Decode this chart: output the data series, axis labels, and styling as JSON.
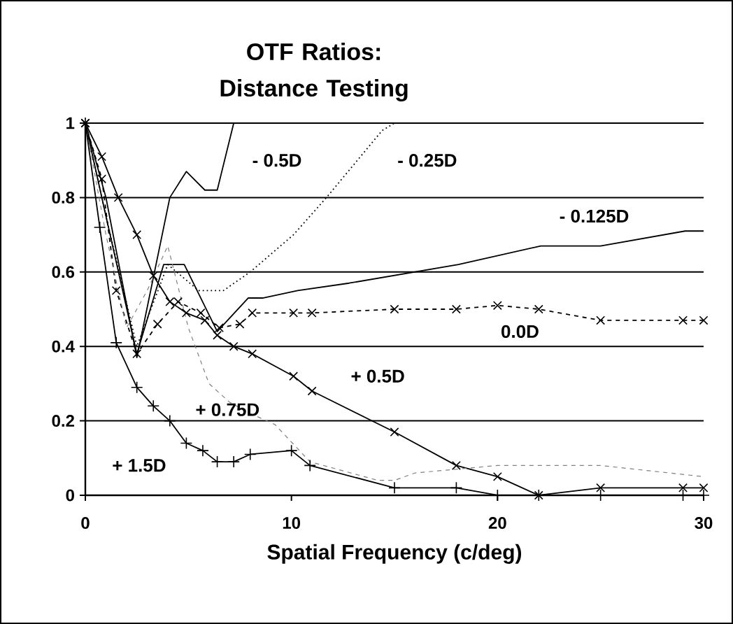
{
  "chart_data": {
    "type": "line",
    "title": "OTF Ratios: Distance Testing",
    "xlabel": "Spatial Frequency (c/deg)",
    "xlim": [
      0,
      30
    ],
    "xticks": [
      0,
      10,
      20,
      30
    ],
    "ylim": [
      0,
      1
    ],
    "yticks": [
      0,
      {
        "value": 0.2,
        "label": "0.2"
      },
      {
        "value": 0.4,
        "label": "0.4"
      },
      {
        "value": 0.6,
        "label": "0.6"
      },
      {
        "value": 0.8,
        "label": "0.8"
      },
      1
    ],
    "grid": "y",
    "series": [
      {
        "name": "- 0.5D",
        "color": "#000000",
        "marker": "none",
        "line_style": "solid",
        "x": [
          0,
          1,
          2.5,
          4.1,
          4.9,
          5.8,
          6.4,
          7.2,
          30
        ],
        "values": [
          1,
          0.8,
          0.37,
          0.8,
          0.87,
          0.82,
          0.82,
          1,
          1
        ]
      },
      {
        "name": "- 0.25D",
        "color": "#000000",
        "marker": "none",
        "line_style": "dotted",
        "x": [
          0,
          1,
          2.5,
          4,
          5.5,
          6.7,
          8,
          10.1,
          11.7,
          14.4,
          15,
          30
        ],
        "values": [
          1,
          0.75,
          0.4,
          0.62,
          0.55,
          0.55,
          0.6,
          0.7,
          0.8,
          0.98,
          1,
          1
        ]
      },
      {
        "name": "- 0.125D",
        "color": "#000000",
        "marker": "none",
        "line_style": "solid",
        "x": [
          0,
          1,
          2.5,
          3.8,
          4.8,
          6.4,
          7.9,
          8.6,
          10.3,
          12.8,
          18.1,
          22.1,
          25,
          29.1,
          30
        ],
        "values": [
          1,
          0.75,
          0.38,
          0.62,
          0.62,
          0.44,
          0.53,
          0.53,
          0.55,
          0.57,
          0.62,
          0.67,
          0.67,
          0.71,
          0.71
        ]
      },
      {
        "name": "0.0D",
        "color": "#000000",
        "marker": "cross",
        "line_style": "dashed",
        "x": [
          0,
          0.8,
          1.5,
          2.5,
          3.5,
          4.5,
          5.6,
          6.5,
          7.5,
          8.1,
          10.1,
          11,
          15,
          18,
          20,
          22,
          25,
          29,
          30
        ],
        "values": [
          1,
          0.85,
          0.55,
          0.38,
          0.46,
          0.52,
          0.49,
          0.45,
          0.46,
          0.49,
          0.49,
          0.49,
          0.5,
          0.5,
          0.51,
          0.5,
          0.47,
          0.47,
          0.47
        ]
      },
      {
        "name": "+ 0.5D",
        "color": "#000000",
        "marker": "cross",
        "line_style": "solid",
        "x": [
          0,
          0.8,
          1.6,
          2.5,
          3.3,
          4.1,
          4.9,
          5.8,
          6.4,
          7.2,
          8.1,
          10.1,
          11,
          15,
          18,
          20,
          22,
          25,
          29,
          30
        ],
        "values": [
          1,
          0.91,
          0.8,
          0.7,
          0.59,
          0.52,
          0.49,
          0.47,
          0.43,
          0.4,
          0.38,
          0.32,
          0.28,
          0.17,
          0.08,
          0.05,
          0,
          0.02,
          0.02,
          0.02
        ]
      },
      {
        "name": "+ 0.75D",
        "color": "#808080",
        "marker": "none",
        "line_style": "dashed",
        "x": [
          0,
          1,
          2,
          3,
          4,
          5,
          6,
          7,
          8,
          9.2,
          10.9,
          14.2,
          15,
          16,
          20,
          25,
          30
        ],
        "values": [
          1,
          0.7,
          0.45,
          0.55,
          0.67,
          0.45,
          0.3,
          0.25,
          0.22,
          0.19,
          0.09,
          0.04,
          0.04,
          0.06,
          0.08,
          0.08,
          0.05
        ]
      },
      {
        "name": "+ 1.5D",
        "color": "#000000",
        "marker": "plus",
        "line_style": "solid",
        "x": [
          0,
          0.7,
          1.5,
          2.5,
          3.3,
          4.1,
          4.9,
          5.7,
          6.4,
          7.2,
          8,
          10,
          10.9,
          15,
          18,
          20,
          22,
          25,
          29,
          30
        ],
        "values": [
          1,
          0.72,
          0.41,
          0.29,
          0.24,
          0.2,
          0.14,
          0.12,
          0.09,
          0.09,
          0.11,
          0.12,
          0.08,
          0.02,
          0.02,
          0,
          0,
          0,
          0,
          0
        ]
      }
    ]
  }
}
